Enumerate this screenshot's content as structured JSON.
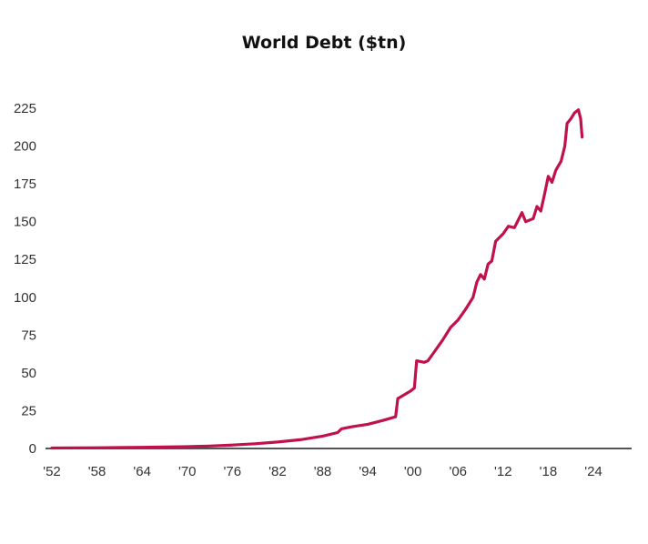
{
  "chart_data": {
    "type": "line",
    "title": "World Debt ($tn)",
    "xlabel": "",
    "ylabel": "",
    "x_tick_labels": [
      "'52",
      "'58",
      "'64",
      "'70",
      "'76",
      "'82",
      "'88",
      "'94",
      "'00",
      "'06",
      "'12",
      "'18",
      "'24"
    ],
    "x_tick_years": [
      1952,
      1958,
      1964,
      1970,
      1976,
      1982,
      1988,
      1994,
      2000,
      2006,
      2012,
      2018,
      2024
    ],
    "y_tick_labels": [
      "0",
      "25",
      "50",
      "75",
      "100",
      "125",
      "150",
      "175",
      "200",
      "225"
    ],
    "y_ticks": [
      0,
      25,
      50,
      75,
      100,
      125,
      150,
      175,
      200,
      225
    ],
    "ylim": [
      0,
      225
    ],
    "xlim": [
      1952,
      2024
    ],
    "grid": false,
    "legend": null,
    "line_color": "#c0104e",
    "axis_color": "#555555",
    "series": [
      {
        "name": "World Debt",
        "x": [
          1952,
          1958,
          1964,
          1970,
          1973,
          1976,
          1979,
          1982,
          1985,
          1988,
          1990,
          1990.5,
          1992,
          1994,
          1996,
          1997,
          1997.7,
          1998,
          1999,
          1999.7,
          2000.2,
          2000.5,
          2001.5,
          2002,
          2003,
          2004,
          2005,
          2006,
          2007,
          2008,
          2008.5,
          2009,
          2009.5,
          2010,
          2010.5,
          2011,
          2012,
          2012.7,
          2013.5,
          2014,
          2014.5,
          2015,
          2016,
          2016.5,
          2017,
          2017.5,
          2018,
          2018.5,
          2019,
          2019.7,
          2020.2,
          2020.5,
          2021,
          2021.5,
          2022,
          2022.3,
          2022.5
        ],
        "values": [
          0.3,
          0.5,
          0.8,
          1.2,
          1.6,
          2.3,
          3.1,
          4.3,
          5.8,
          8.2,
          10.5,
          13,
          14.5,
          16,
          18.5,
          20,
          21,
          33,
          36,
          38,
          40,
          58,
          57,
          58,
          65,
          72,
          80,
          85,
          92,
          100,
          110,
          115,
          112,
          122,
          124,
          137,
          142,
          147,
          146,
          151,
          156,
          150,
          152,
          160,
          157,
          168,
          180,
          176,
          184,
          190,
          200,
          215,
          218,
          222,
          224,
          218,
          206
        ]
      }
    ]
  }
}
